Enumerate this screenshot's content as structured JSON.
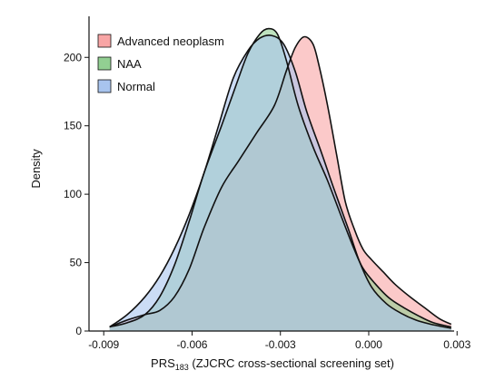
{
  "chart_data": {
    "type": "area",
    "title": "",
    "xlabel": {
      "main": "PRS",
      "sub": "183",
      "rest": " (ZJCRC cross-sectional screening set)"
    },
    "ylabel": "Density",
    "xlim": [
      -0.0095,
      0.0029
    ],
    "ylim": [
      0,
      230
    ],
    "xticks": [
      -0.009,
      -0.006,
      -0.003,
      0.0,
      0.003
    ],
    "xtick_labels": [
      "-0.009",
      "-0.006",
      "-0.003",
      "0.000",
      "0.003"
    ],
    "yticks": [
      0,
      50,
      100,
      150,
      200
    ],
    "ytick_labels": [
      "0",
      "50",
      "100",
      "150",
      "200"
    ],
    "grid": false,
    "legend_position": "top-left",
    "series": [
      {
        "name": "Advanced neoplasm",
        "color": "#f8a5a5",
        "points": [
          [
            -0.0088,
            3
          ],
          [
            -0.0082,
            8
          ],
          [
            -0.0076,
            12
          ],
          [
            -0.0071,
            15
          ],
          [
            -0.0066,
            25
          ],
          [
            -0.0061,
            45
          ],
          [
            -0.0056,
            75
          ],
          [
            -0.005,
            105
          ],
          [
            -0.0044,
            125
          ],
          [
            -0.0038,
            145
          ],
          [
            -0.0032,
            165
          ],
          [
            -0.0028,
            190
          ],
          [
            -0.0025,
            207
          ],
          [
            -0.0022,
            215
          ],
          [
            -0.0019,
            210
          ],
          [
            -0.0017,
            195
          ],
          [
            -0.0014,
            165
          ],
          [
            -0.0011,
            130
          ],
          [
            -0.0008,
            95
          ],
          [
            -0.0005,
            75
          ],
          [
            -0.0002,
            60
          ],
          [
            0.0001,
            52
          ],
          [
            0.0005,
            43
          ],
          [
            0.0009,
            34
          ],
          [
            0.0014,
            25
          ],
          [
            0.0019,
            17
          ],
          [
            0.0024,
            9
          ],
          [
            0.0028,
            5
          ]
        ]
      },
      {
        "name": "NAA",
        "color": "#92cf92",
        "points": [
          [
            -0.0088,
            3
          ],
          [
            -0.0082,
            6
          ],
          [
            -0.0076,
            12
          ],
          [
            -0.0071,
            25
          ],
          [
            -0.0066,
            48
          ],
          [
            -0.0061,
            80
          ],
          [
            -0.0056,
            115
          ],
          [
            -0.005,
            150
          ],
          [
            -0.0045,
            180
          ],
          [
            -0.0041,
            203
          ],
          [
            -0.0037,
            217
          ],
          [
            -0.0034,
            221
          ],
          [
            -0.0031,
            217
          ],
          [
            -0.0028,
            198
          ],
          [
            -0.0024,
            165
          ],
          [
            -0.0019,
            135
          ],
          [
            -0.0014,
            110
          ],
          [
            -0.0009,
            82
          ],
          [
            -0.0005,
            60
          ],
          [
            -0.0002,
            46
          ],
          [
            0.0002,
            35
          ],
          [
            0.0007,
            24
          ],
          [
            0.0012,
            17
          ],
          [
            0.0017,
            11
          ],
          [
            0.0022,
            6
          ],
          [
            0.0028,
            3
          ]
        ]
      },
      {
        "name": "Normal",
        "color": "#a8c4ee",
        "points": [
          [
            -0.0088,
            3
          ],
          [
            -0.0082,
            12
          ],
          [
            -0.0076,
            25
          ],
          [
            -0.0071,
            40
          ],
          [
            -0.0066,
            60
          ],
          [
            -0.0061,
            85
          ],
          [
            -0.0056,
            115
          ],
          [
            -0.0051,
            150
          ],
          [
            -0.0046,
            185
          ],
          [
            -0.0041,
            205
          ],
          [
            -0.0037,
            214
          ],
          [
            -0.0033,
            216
          ],
          [
            -0.0029,
            210
          ],
          [
            -0.0025,
            190
          ],
          [
            -0.0021,
            160
          ],
          [
            -0.0016,
            130
          ],
          [
            -0.0012,
            105
          ],
          [
            -0.0007,
            75
          ],
          [
            -0.0003,
            50
          ],
          [
            0.0001,
            32
          ],
          [
            0.0006,
            20
          ],
          [
            0.0011,
            13
          ],
          [
            0.0016,
            8
          ],
          [
            0.0021,
            5
          ],
          [
            0.0028,
            2
          ]
        ]
      }
    ]
  }
}
